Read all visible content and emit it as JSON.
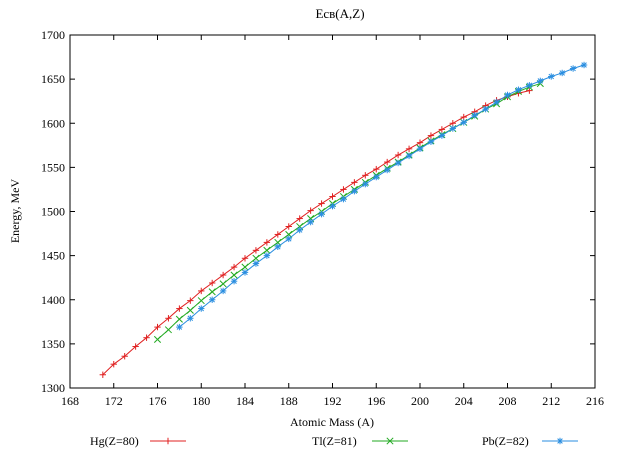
{
  "chart_data": {
    "type": "line",
    "title": "Eсв(A,Z)",
    "xlabel": "Atomic Mass (A)",
    "ylabel": "Energy, MeV",
    "xlim": [
      168,
      216
    ],
    "ylim": [
      1300,
      1700
    ],
    "xticks": [
      168,
      172,
      176,
      180,
      184,
      188,
      192,
      196,
      200,
      204,
      208,
      212,
      216
    ],
    "yticks": [
      1300,
      1350,
      1400,
      1450,
      1500,
      1550,
      1600,
      1650,
      1700
    ],
    "grid": false,
    "legend_position": "bottom",
    "series": [
      {
        "name": "Hg(Z=80)",
        "color": "#e02020",
        "marker": "+",
        "x": [
          171,
          172,
          173,
          174,
          175,
          176,
          177,
          178,
          179,
          180,
          181,
          182,
          183,
          184,
          185,
          186,
          187,
          188,
          189,
          190,
          191,
          192,
          193,
          194,
          195,
          196,
          197,
          198,
          199,
          200,
          201,
          202,
          203,
          204,
          205,
          206,
          207,
          208,
          209,
          210
        ],
        "y": [
          1315,
          1327,
          1336,
          1347,
          1357,
          1369,
          1379,
          1390,
          1399,
          1410,
          1419,
          1428,
          1437,
          1447,
          1456,
          1465,
          1474,
          1483,
          1492,
          1501,
          1509,
          1517,
          1525,
          1533,
          1541,
          1548,
          1556,
          1564,
          1571,
          1578,
          1586,
          1593,
          1600,
          1607,
          1613,
          1620,
          1626,
          1630,
          1634,
          1637
        ]
      },
      {
        "name": "Tl(Z=81)",
        "color": "#22aa22",
        "marker": "x",
        "x": [
          176,
          177,
          178,
          179,
          180,
          181,
          182,
          183,
          184,
          185,
          186,
          187,
          188,
          189,
          190,
          191,
          192,
          193,
          194,
          195,
          196,
          197,
          198,
          199,
          200,
          201,
          202,
          203,
          204,
          205,
          206,
          207,
          208,
          209,
          210,
          211
        ],
        "y": [
          1355,
          1366,
          1378,
          1388,
          1399,
          1409,
          1418,
          1428,
          1437,
          1447,
          1456,
          1465,
          1474,
          1483,
          1492,
          1500,
          1509,
          1517,
          1525,
          1533,
          1541,
          1549,
          1556,
          1564,
          1572,
          1580,
          1587,
          1594,
          1601,
          1608,
          1616,
          1622,
          1630,
          1636,
          1641,
          1645
        ]
      },
      {
        "name": "Pb(Z=82)",
        "color": "#2a8ee0",
        "marker": "*",
        "x": [
          178,
          179,
          180,
          181,
          182,
          183,
          184,
          185,
          186,
          187,
          188,
          189,
          190,
          191,
          192,
          193,
          194,
          195,
          196,
          197,
          198,
          199,
          200,
          201,
          202,
          203,
          204,
          205,
          206,
          207,
          208,
          209,
          210,
          211,
          212,
          213,
          214,
          215
        ],
        "y": [
          1369,
          1379,
          1390,
          1400,
          1410,
          1421,
          1431,
          1441,
          1450,
          1460,
          1469,
          1479,
          1488,
          1497,
          1506,
          1514,
          1523,
          1531,
          1539,
          1547,
          1555,
          1563,
          1571,
          1579,
          1586,
          1594,
          1601,
          1609,
          1616,
          1624,
          1632,
          1638,
          1643,
          1648,
          1653,
          1657,
          1662,
          1666
        ]
      }
    ]
  }
}
